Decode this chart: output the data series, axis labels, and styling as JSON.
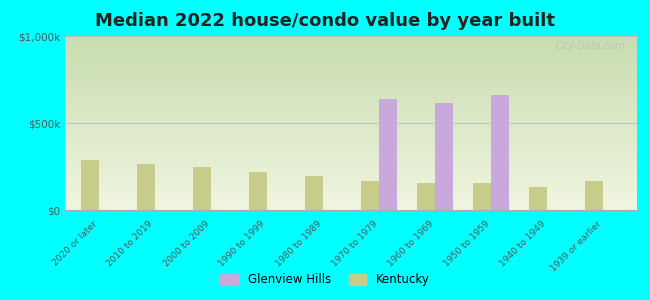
{
  "title": "Median 2022 house/condo value by year built",
  "categories": [
    "2020 or later",
    "2010 to 2019",
    "2000 to 2009",
    "1990 to 1999",
    "1980 to 1989",
    "1970 to 1979",
    "1960 to 1969",
    "1950 to 1959",
    "1940 to 1949",
    "1939 or earlier"
  ],
  "glenview_hills": [
    null,
    null,
    null,
    null,
    null,
    640000,
    615000,
    660000,
    null,
    null
  ],
  "kentucky": [
    290000,
    265000,
    250000,
    220000,
    195000,
    165000,
    155000,
    155000,
    130000,
    165000
  ],
  "ylim": [
    0,
    1000000
  ],
  "yticks": [
    0,
    500000,
    1000000
  ],
  "ytick_labels": [
    "$0",
    "$500k",
    "$1,000k"
  ],
  "bar_color_gh": "#c9a8dc",
  "bar_color_ky": "#c8cc8a",
  "background_color": "#00ffff",
  "plot_bg_top": "#c8ddb0",
  "plot_bg_bottom": "#f0f5e0",
  "legend_gh": "Glenview Hills",
  "legend_ky": "Kentucky",
  "watermark": "City-Data.com",
  "title_fontsize": 13,
  "bar_width": 0.32
}
